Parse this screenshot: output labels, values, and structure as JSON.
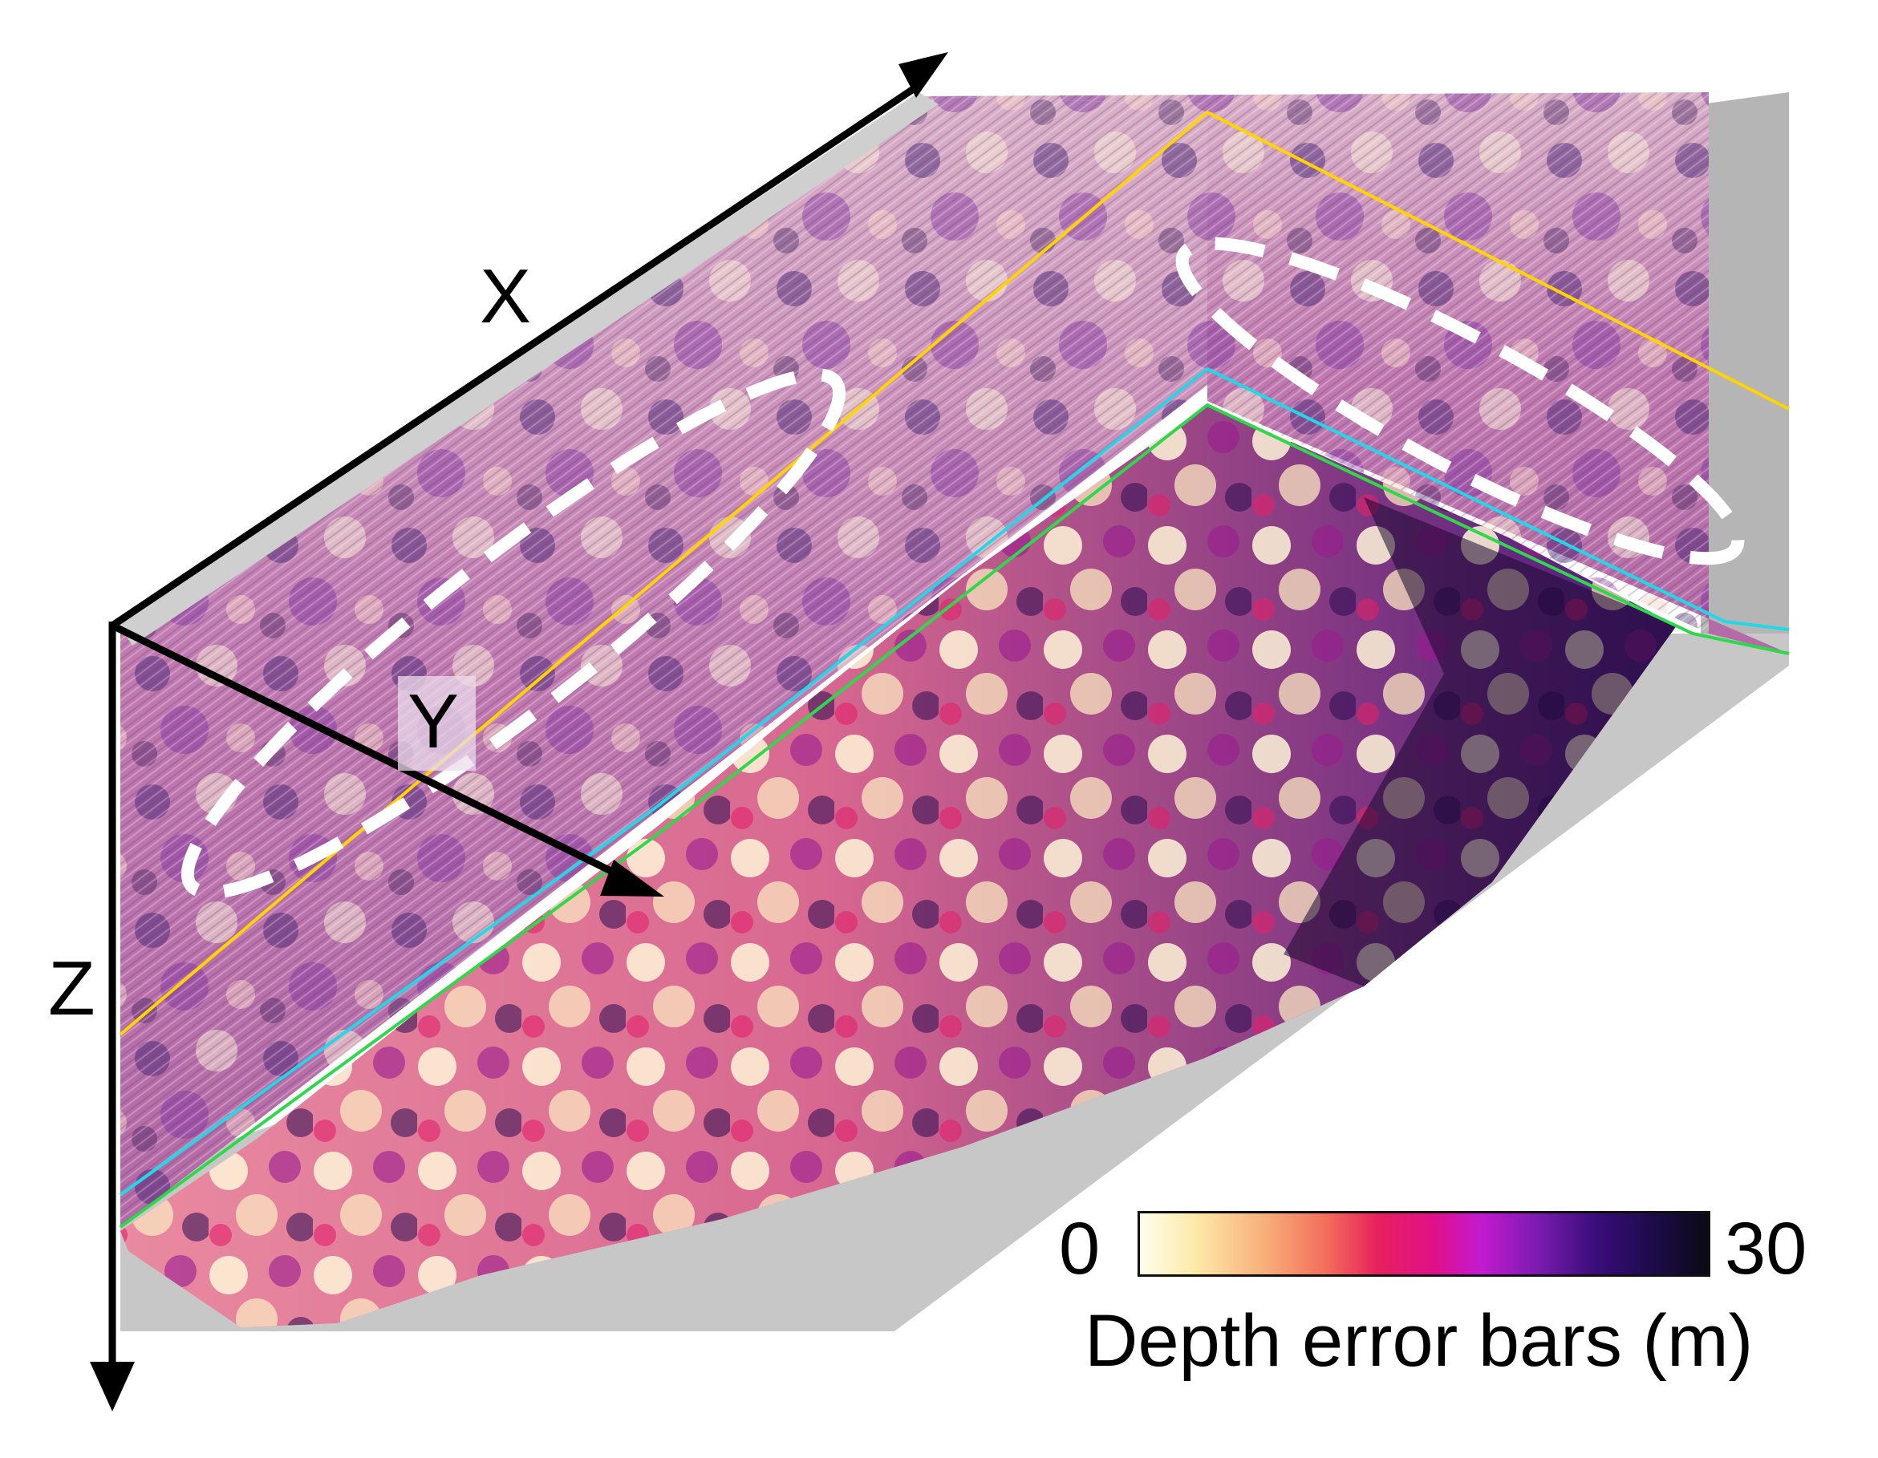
{
  "axes": {
    "x": "X",
    "y": "Y",
    "z": "Z"
  },
  "colorbar": {
    "min_label": "0",
    "max_label": "30",
    "title": "Depth error bars (m)",
    "min_value": 0,
    "max_value": 30,
    "colormap": [
      "#fffff0",
      "#fde9a9",
      "#f8b07a",
      "#f36d5a",
      "#e8205e",
      "#e0108a",
      "#c41ad0",
      "#7a1bb0",
      "#3a0d7a",
      "#1c0b4a",
      "#0a0a14"
    ]
  },
  "colors": {
    "horizon_yellow": "#ffd400",
    "horizon_cyan": "#20d8e8",
    "horizon_green": "#2ed84a",
    "annotation_ellipse": "#ffffff",
    "axis": "#000000",
    "seismic_gray": "#bdbdbd"
  }
}
